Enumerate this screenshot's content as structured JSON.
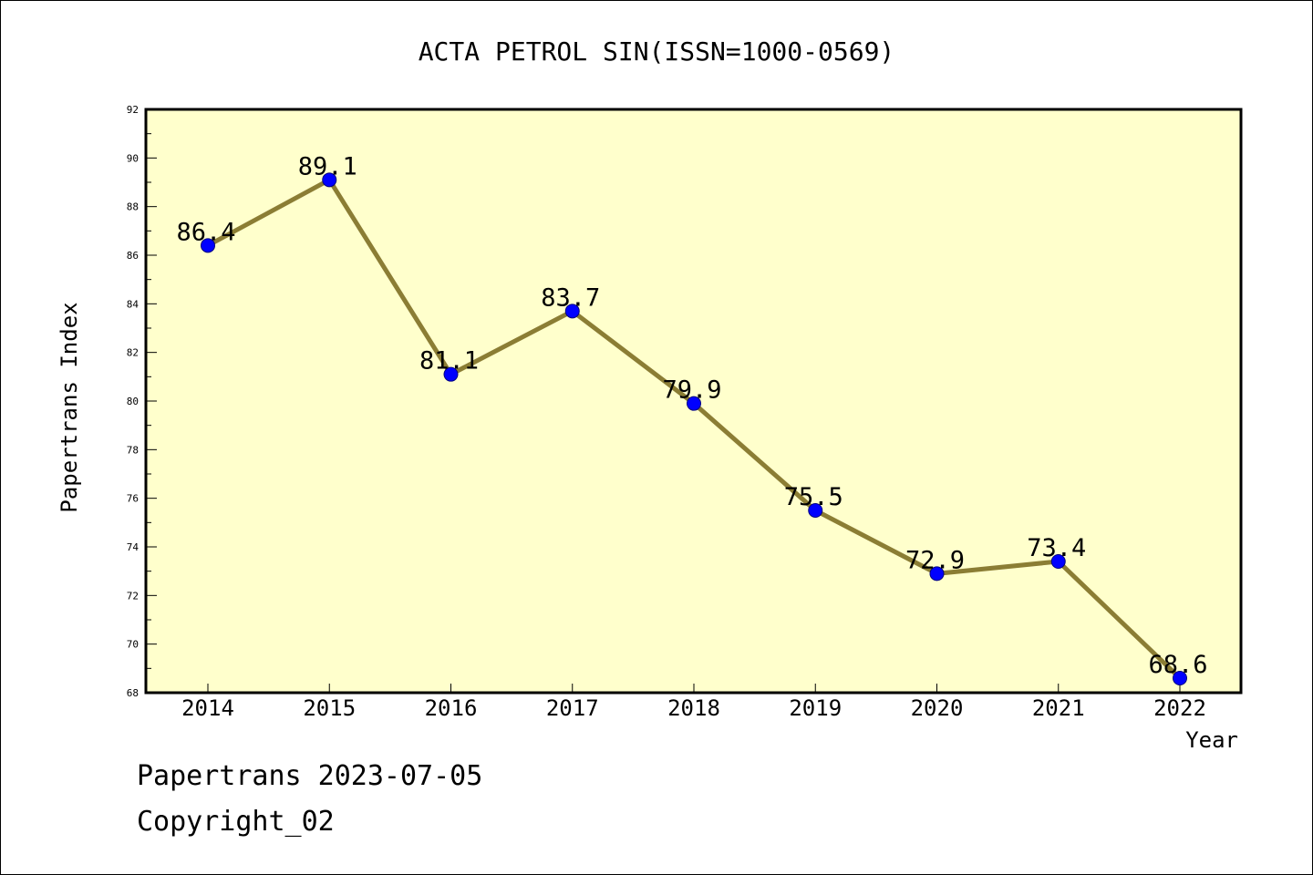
{
  "chart_data": {
    "type": "line",
    "title": "ACTA PETROL SIN(ISSN=1000-0569)",
    "xlabel": "Year",
    "ylabel": "Papertrans Index",
    "categories": [
      "2014",
      "2015",
      "2016",
      "2017",
      "2018",
      "2019",
      "2020",
      "2021",
      "2022"
    ],
    "values": [
      86.4,
      89.1,
      81.1,
      83.7,
      79.9,
      75.5,
      72.9,
      73.4,
      68.6
    ],
    "data_labels": [
      "86.4",
      "89.1",
      "81.1",
      "83.7",
      "79.9",
      "75.5",
      "72.9",
      "73.4",
      "68.6"
    ],
    "ylim": [
      68,
      92
    ],
    "yticks": [
      "68",
      "70",
      "72",
      "74",
      "76",
      "78",
      "80",
      "82",
      "84",
      "86",
      "88",
      "90",
      "92"
    ],
    "grid": false,
    "legend": "none",
    "colors": {
      "plot_background": "#ffffcc",
      "line": "#8b7d34",
      "marker": "#0000ff"
    }
  },
  "footer": {
    "line1": "Papertrans 2023-07-05",
    "line2": "Copyright_02"
  }
}
